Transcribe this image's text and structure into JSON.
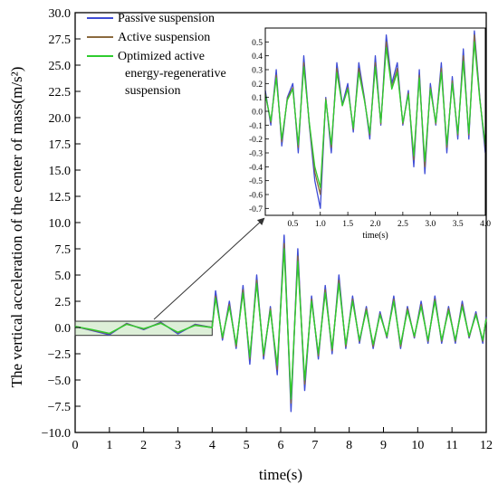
{
  "chart_data": [
    {
      "type": "line",
      "xlabel": "time(s)",
      "ylabel": "The vertical acceleration of the center of mass(m/s²)",
      "xlim": [
        0,
        12
      ],
      "ylim": [
        -10,
        30
      ],
      "xticks": [
        0,
        1,
        2,
        3,
        4,
        5,
        6,
        7,
        8,
        9,
        10,
        11,
        12
      ],
      "xtick_labels": [
        "0",
        "1",
        "2",
        "3",
        "4",
        "5",
        "6",
        "7",
        "8",
        "9",
        "10",
        "11",
        "12"
      ],
      "yticks": [
        -10,
        -7.5,
        -5,
        -2.5,
        0,
        2.5,
        5,
        7.5,
        10,
        12.5,
        15,
        17.5,
        20,
        22.5,
        25,
        27.5,
        30
      ],
      "ytick_labels": [
        "−10.0",
        "−7.5",
        "−5.0",
        "−2.5",
        "0.0",
        "2.5",
        "5.0",
        "7.5",
        "10.0",
        "12.5",
        "15.0",
        "17.5",
        "20.0",
        "22.5",
        "25.0",
        "27.5",
        "30.0"
      ],
      "grid": false,
      "legend_position": "top-left",
      "highlight_region": {
        "x": [
          0,
          4
        ],
        "y": [
          -0.75,
          0.6
        ]
      },
      "series": [
        {
          "name": "Passive suspension",
          "color": "#3d4bd6",
          "x": [
            0,
            0.5,
            1,
            1.5,
            2,
            2.5,
            3,
            3.5,
            4,
            4.1,
            4.3,
            4.5,
            4.7,
            4.9,
            5.1,
            5.3,
            5.5,
            5.7,
            5.9,
            6.1,
            6.3,
            6.5,
            6.7,
            6.9,
            7.1,
            7.3,
            7.5,
            7.7,
            7.9,
            8.1,
            8.3,
            8.5,
            8.7,
            8.9,
            9.1,
            9.3,
            9.5,
            9.7,
            9.9,
            10.1,
            10.3,
            10.5,
            10.7,
            10.9,
            11.1,
            11.3,
            11.5,
            11.7,
            11.9,
            12
          ],
          "y": [
            0.1,
            -0.3,
            -0.7,
            0.4,
            -0.2,
            0.5,
            -0.6,
            0.3,
            0,
            3.5,
            -1.2,
            2.5,
            -2,
            4,
            -3.5,
            5,
            -3,
            2,
            -4.5,
            8.8,
            -8,
            7.5,
            -6,
            3,
            -3,
            4,
            -2.5,
            5,
            -2,
            3,
            -1.5,
            2,
            -2,
            1.5,
            -1,
            3,
            -2,
            2,
            -1,
            2.5,
            -1.5,
            3,
            -1.5,
            2,
            -1.5,
            2.5,
            -1,
            1.5,
            -1.5,
            1
          ]
        },
        {
          "name": "Active suspension",
          "color": "#8b6a3e",
          "x": [
            0,
            0.5,
            1,
            1.5,
            2,
            2.5,
            3,
            3.5,
            4,
            4.1,
            4.3,
            4.5,
            4.7,
            4.9,
            5.1,
            5.3,
            5.5,
            5.7,
            5.9,
            6.1,
            6.3,
            6.5,
            6.7,
            6.9,
            7.1,
            7.3,
            7.5,
            7.7,
            7.9,
            8.1,
            8.3,
            8.5,
            8.7,
            8.9,
            9.1,
            9.3,
            9.5,
            9.7,
            9.9,
            10.1,
            10.3,
            10.5,
            10.7,
            10.9,
            11.1,
            11.3,
            11.5,
            11.7,
            11.9,
            12
          ],
          "y": [
            0.1,
            -0.25,
            -0.6,
            0.35,
            -0.15,
            0.45,
            -0.5,
            0.25,
            0,
            3,
            -1,
            2.2,
            -1.8,
            3.6,
            -3,
            4.5,
            -2.7,
            1.8,
            -4,
            8,
            -7.2,
            6.8,
            -5.4,
            2.7,
            -2.7,
            3.6,
            -2.2,
            4.5,
            -1.8,
            2.7,
            -1.3,
            1.8,
            -1.8,
            1.3,
            -0.9,
            2.7,
            -1.8,
            1.8,
            -0.9,
            2.2,
            -1.3,
            2.7,
            -1.3,
            1.8,
            -1.3,
            2.2,
            -0.9,
            1.3,
            -1.3,
            0.9
          ]
        },
        {
          "name": "Optimized active energy-regenerative suspension",
          "color": "#2ecc2e",
          "x": [
            0,
            0.5,
            1,
            1.5,
            2,
            2.5,
            3,
            3.5,
            4,
            4.1,
            4.3,
            4.5,
            4.7,
            4.9,
            5.1,
            5.3,
            5.5,
            5.7,
            5.9,
            6.1,
            6.3,
            6.5,
            6.7,
            6.9,
            7.1,
            7.3,
            7.5,
            7.7,
            7.9,
            8.1,
            8.3,
            8.5,
            8.7,
            8.9,
            9.1,
            9.3,
            9.5,
            9.7,
            9.9,
            10.1,
            10.3,
            10.5,
            10.7,
            10.9,
            11.1,
            11.3,
            11.5,
            11.7,
            11.9,
            12
          ],
          "y": [
            0.1,
            -0.2,
            -0.55,
            0.3,
            -0.1,
            0.4,
            -0.45,
            0.2,
            0,
            2.8,
            -0.9,
            2,
            -1.6,
            3.3,
            -2.8,
            4.2,
            -2.5,
            1.6,
            -3.6,
            7.5,
            -6.8,
            6.3,
            -5,
            2.5,
            -2.5,
            3.3,
            -2,
            4.2,
            -1.6,
            2.5,
            -1.2,
            1.6,
            -1.6,
            1.2,
            -0.8,
            2.5,
            -1.6,
            1.6,
            -0.8,
            2,
            -1.2,
            2.5,
            -1.2,
            1.6,
            -1.2,
            2,
            -0.8,
            1.2,
            -1.2,
            0.8
          ]
        }
      ]
    },
    {
      "type": "line",
      "xlabel": "time(s)",
      "ylabel": "",
      "xlim": [
        0,
        4
      ],
      "ylim": [
        -0.75,
        0.6
      ],
      "xticks": [
        0.5,
        1,
        1.5,
        2,
        2.5,
        3,
        3.5,
        4
      ],
      "xtick_labels": [
        "0.5",
        "1.0",
        "1.5",
        "2.0",
        "2.5",
        "3.0",
        "3.5",
        "4.0"
      ],
      "yticks": [
        -0.7,
        -0.6,
        -0.5,
        -0.4,
        -0.3,
        -0.2,
        -0.1,
        0,
        0.1,
        0.2,
        0.3,
        0.4,
        0.5
      ],
      "ytick_labels": [
        "-0.7",
        "-0.6",
        "-0.5",
        "-0.4",
        "-0.3",
        "-0.2",
        "-0.1",
        "0.0",
        "0.1",
        "0.2",
        "0.3",
        "0.4",
        "0.5"
      ],
      "grid": false,
      "series": [
        {
          "name": "Passive suspension",
          "color": "#3d4bd6",
          "x": [
            0,
            0.1,
            0.2,
            0.3,
            0.4,
            0.5,
            0.6,
            0.7,
            0.8,
            0.9,
            1,
            1.1,
            1.2,
            1.3,
            1.4,
            1.5,
            1.6,
            1.7,
            1.8,
            1.9,
            2,
            2.1,
            2.2,
            2.3,
            2.4,
            2.5,
            2.6,
            2.7,
            2.8,
            2.9,
            3,
            3.1,
            3.2,
            3.3,
            3.4,
            3.5,
            3.6,
            3.7,
            3.8,
            3.9,
            4
          ],
          "y": [
            0.15,
            -0.1,
            0.3,
            -0.25,
            0.1,
            0.2,
            -0.3,
            0.4,
            -0.1,
            -0.5,
            -0.7,
            0.1,
            -0.3,
            0.35,
            0.05,
            0.2,
            -0.15,
            0.35,
            0.1,
            -0.2,
            0.4,
            -0.1,
            0.55,
            0.2,
            0.35,
            -0.1,
            0.15,
            -0.4,
            0.3,
            -0.45,
            0.2,
            -0.1,
            0.35,
            -0.3,
            0.25,
            -0.2,
            0.45,
            -0.2,
            0.58,
            0.1,
            -0.3
          ]
        },
        {
          "name": "Active suspension",
          "color": "#8b6a3e",
          "x": [
            0,
            0.1,
            0.2,
            0.3,
            0.4,
            0.5,
            0.6,
            0.7,
            0.8,
            0.9,
            1,
            1.1,
            1.2,
            1.3,
            1.4,
            1.5,
            1.6,
            1.7,
            1.8,
            1.9,
            2,
            2.1,
            2.2,
            2.3,
            2.4,
            2.5,
            2.6,
            2.7,
            2.8,
            2.9,
            3,
            3.1,
            3.2,
            3.3,
            3.4,
            3.5,
            3.6,
            3.7,
            3.8,
            3.9,
            4
          ],
          "y": [
            0.13,
            -0.08,
            0.26,
            -0.22,
            0.09,
            0.17,
            -0.26,
            0.35,
            -0.09,
            -0.44,
            -0.6,
            0.09,
            -0.26,
            0.31,
            0.04,
            0.17,
            -0.13,
            0.31,
            0.09,
            -0.17,
            0.35,
            -0.09,
            0.5,
            0.17,
            0.31,
            -0.09,
            0.13,
            -0.35,
            0.26,
            -0.4,
            0.17,
            -0.09,
            0.31,
            -0.26,
            0.22,
            -0.17,
            0.4,
            -0.17,
            0.55,
            0.09,
            -0.26
          ]
        },
        {
          "name": "Optimized active energy-regenerative suspension",
          "color": "#2ecc2e",
          "x": [
            0,
            0.1,
            0.2,
            0.3,
            0.4,
            0.5,
            0.6,
            0.7,
            0.8,
            0.9,
            1,
            1.1,
            1.2,
            1.3,
            1.4,
            1.5,
            1.6,
            1.7,
            1.8,
            1.9,
            2,
            2.1,
            2.2,
            2.3,
            2.4,
            2.5,
            2.6,
            2.7,
            2.8,
            2.9,
            3,
            3.1,
            3.2,
            3.3,
            3.4,
            3.5,
            3.6,
            3.7,
            3.8,
            3.9,
            4
          ],
          "y": [
            0.12,
            -0.07,
            0.24,
            -0.2,
            0.08,
            0.16,
            -0.24,
            0.32,
            -0.08,
            -0.4,
            -0.55,
            0.08,
            -0.24,
            0.28,
            0.04,
            0.16,
            -0.12,
            0.28,
            0.08,
            -0.16,
            0.32,
            -0.08,
            0.46,
            0.16,
            0.28,
            -0.08,
            0.12,
            -0.32,
            0.24,
            -0.36,
            0.16,
            -0.08,
            0.28,
            -0.24,
            0.2,
            -0.16,
            0.36,
            -0.16,
            0.5,
            0.08,
            -0.24
          ]
        }
      ]
    }
  ],
  "legend": {
    "items": [
      {
        "lines": [
          "Passive suspension"
        ],
        "color": "#3d4bd6"
      },
      {
        "lines": [
          "Active suspension"
        ],
        "color": "#8b6a3e"
      },
      {
        "lines": [
          "Optimized active",
          "energy-regenerative",
          "suspension"
        ],
        "color": "#2ecc2e"
      }
    ]
  }
}
